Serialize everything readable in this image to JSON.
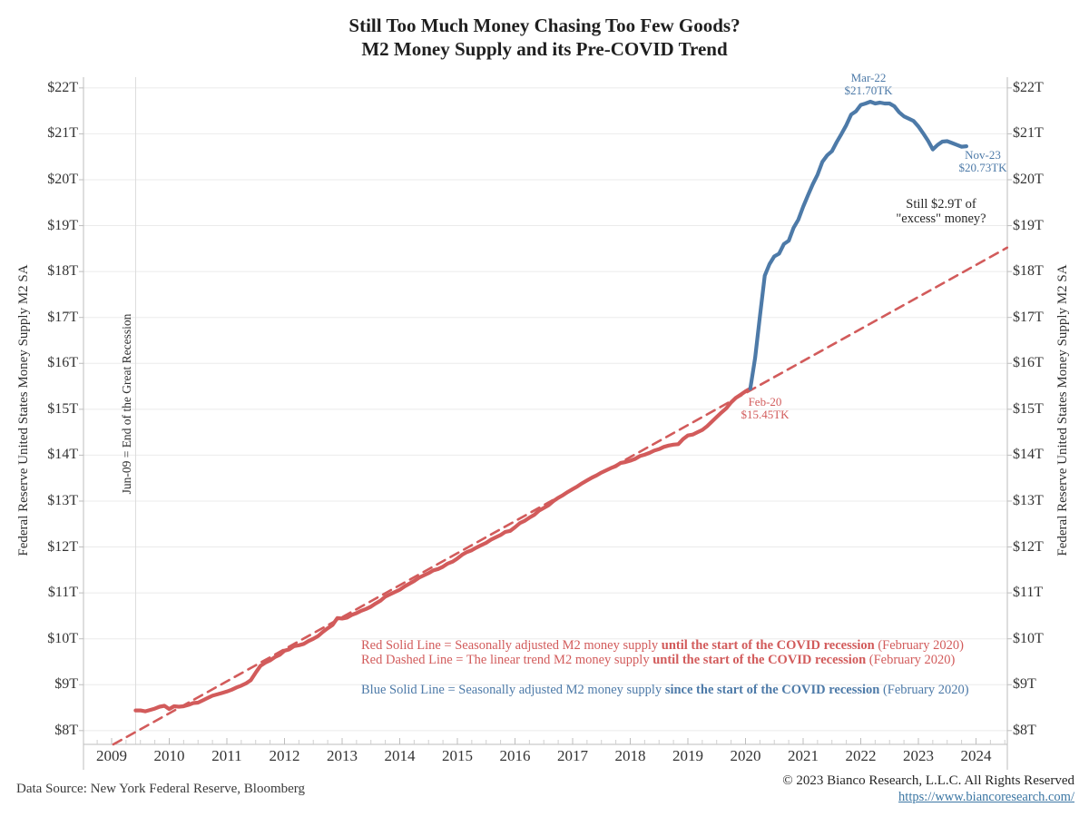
{
  "title": {
    "line1": "Still Too Much Money Chasing Too Few Goods?",
    "line2": "M2 Money Supply and its Pre-COVID Trend"
  },
  "axes": {
    "y_label_left": "Federal Reserve United States Money Supply M2 SA",
    "y_label_right": "Federal Reserve United States Money Supply M2 SA"
  },
  "recession_note": "Jun-09 = End of the Great Recession",
  "annotations": {
    "peak": {
      "line1": "Mar-22",
      "line2": "$21.70TK"
    },
    "latest": {
      "line1": "Nov-23",
      "line2": "$20.73TK"
    },
    "covid_start": {
      "line1": "Feb-20",
      "line2": "$15.45TK"
    },
    "excess": {
      "line1": "Still $2.9T of",
      "line2": "\"excess\" money?"
    }
  },
  "legend": {
    "red_solid": {
      "pre": "Red Solid Line = Seasonally adjusted M2 money supply ",
      "bold": "until the start of the COVID recession",
      "post": " (February 2020)"
    },
    "red_dashed": {
      "pre": "Red Dashed Line = The linear trend M2 money supply ",
      "bold": "until the start of the COVID recession",
      "post": " (February 2020)"
    },
    "blue_solid": {
      "pre": "Blue Solid Line = Seasonally adjusted M2 money supply ",
      "bold": "since the start of the COVID recession",
      "post": " (February 2020)"
    }
  },
  "footer": {
    "source": "Data Source: New York Federal Reserve, Bloomberg",
    "copyright": "© 2023 Bianco Research, L.L.C. All Rights Reserved",
    "link": "https://www.biancoresearch.com/"
  },
  "colors": {
    "red": "#d25b5b",
    "blue": "#4d7aa8",
    "grid": "#ebebeb",
    "frame": "#bdbdbd",
    "minor_tick": "#cfcfcf",
    "recession_line": "#dcdcdc",
    "link_blue": "#3b76a3",
    "text": "#262626"
  },
  "chart_data": {
    "type": "line",
    "title": "M2 Money Supply and its Pre-COVID Trend",
    "ylabel": "Federal Reserve United States Money Supply M2 SA ($ trillions)",
    "x_axis": {
      "tick_years": [
        2009,
        2010,
        2011,
        2012,
        2013,
        2014,
        2015,
        2016,
        2017,
        2018,
        2019,
        2020,
        2021,
        2022,
        2023,
        2024
      ],
      "range_years": [
        2008.51,
        2024.54
      ],
      "minor_tick_step_years": 0.25
    },
    "y_axis": {
      "tick_values": [
        8,
        9,
        10,
        11,
        12,
        13,
        14,
        15,
        16,
        17,
        18,
        19,
        20,
        21,
        22
      ],
      "tick_prefix": "$",
      "tick_suffix": "T",
      "range_trillions": [
        7.7,
        22.25
      ],
      "grid": true
    },
    "callouts": [
      {
        "label": "Feb-20",
        "value_trillions": 15.45,
        "series": "M2 money supply (pre-COVID)"
      },
      {
        "label": "Mar-22",
        "value_trillions": 21.7,
        "series": "M2 money supply (since COVID)"
      },
      {
        "label": "Nov-23",
        "value_trillions": 20.73,
        "series": "M2 money supply (since COVID)"
      }
    ],
    "series": [
      {
        "name": "M2 money supply (pre-COVID)",
        "style": "solid",
        "color_key": "red",
        "start": "2009-06",
        "cadence": "monthly",
        "values": [
          8.44,
          8.44,
          8.42,
          8.45,
          8.48,
          8.52,
          8.54,
          8.47,
          8.53,
          8.52,
          8.53,
          8.56,
          8.6,
          8.61,
          8.66,
          8.71,
          8.76,
          8.79,
          8.82,
          8.85,
          8.89,
          8.94,
          8.98,
          9.03,
          9.1,
          9.26,
          9.41,
          9.48,
          9.53,
          9.6,
          9.65,
          9.74,
          9.77,
          9.84,
          9.86,
          9.89,
          9.95,
          10.0,
          10.06,
          10.15,
          10.23,
          10.3,
          10.45,
          10.44,
          10.46,
          10.52,
          10.56,
          10.61,
          10.65,
          10.7,
          10.77,
          10.83,
          10.92,
          10.97,
          11.02,
          11.07,
          11.14,
          11.2,
          11.26,
          11.33,
          11.38,
          11.43,
          11.49,
          11.52,
          11.57,
          11.64,
          11.68,
          11.75,
          11.83,
          11.89,
          11.93,
          11.99,
          12.04,
          12.09,
          12.16,
          12.21,
          12.26,
          12.33,
          12.35,
          12.43,
          12.52,
          12.57,
          12.64,
          12.7,
          12.79,
          12.85,
          12.91,
          13.0,
          13.07,
          13.13,
          13.2,
          13.26,
          13.32,
          13.39,
          13.45,
          13.51,
          13.56,
          13.62,
          13.67,
          13.72,
          13.76,
          13.83,
          13.85,
          13.88,
          13.92,
          13.98,
          14.01,
          14.05,
          14.1,
          14.13,
          14.18,
          14.21,
          14.23,
          14.24,
          14.35,
          14.43,
          14.45,
          14.5,
          14.55,
          14.63,
          14.73,
          14.83,
          14.93,
          15.02,
          15.15,
          15.25,
          15.32,
          15.39,
          15.45
        ]
      },
      {
        "name": "Pre-COVID linear trend",
        "style": "dashed",
        "color_key": "red",
        "x_years": [
          2009.03,
          2024.54
        ],
        "values": [
          7.7,
          18.52
        ]
      },
      {
        "name": "M2 money supply (since COVID)",
        "style": "solid",
        "color_key": "blue",
        "start": "2020-02",
        "cadence": "monthly",
        "values": [
          15.45,
          16.12,
          17.03,
          17.91,
          18.16,
          18.33,
          18.39,
          18.6,
          18.67,
          18.95,
          19.13,
          19.41,
          19.66,
          19.9,
          20.11,
          20.39,
          20.53,
          20.62,
          20.82,
          21.0,
          21.19,
          21.42,
          21.49,
          21.63,
          21.66,
          21.7,
          21.66,
          21.68,
          21.66,
          21.66,
          21.6,
          21.47,
          21.38,
          21.33,
          21.28,
          21.16,
          21.01,
          20.85,
          20.66,
          20.76,
          20.83,
          20.84,
          20.8,
          20.76,
          20.72,
          20.73
        ]
      }
    ]
  }
}
